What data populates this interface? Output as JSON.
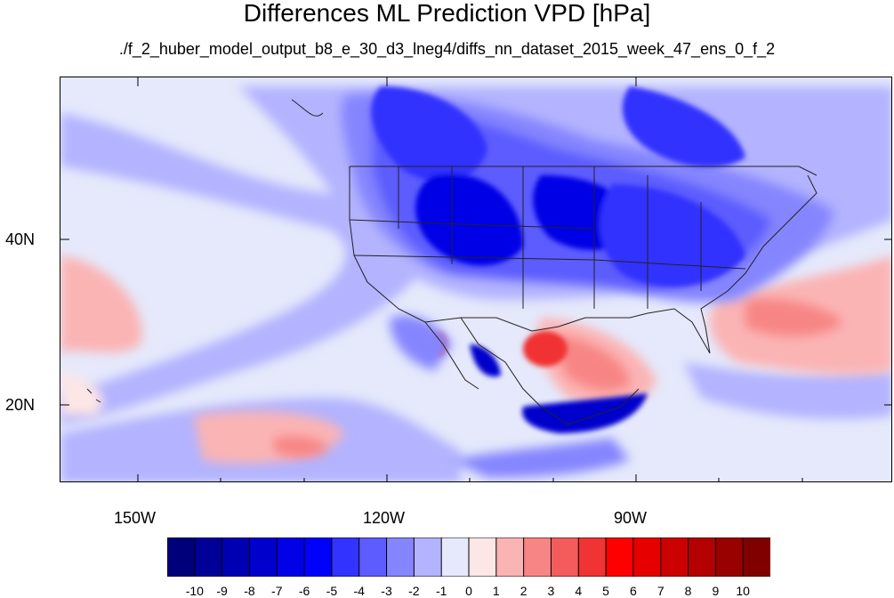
{
  "title": "Differences ML Prediction VPD [hPa]",
  "subtitle": "./f_2_huber_model_output_b8_e_30_d3_lneg4/diffs_nn_dataset_2015_week_47_ens_0_f_2",
  "map": {
    "lat_labels": [
      {
        "label": "40N",
        "value": 40
      },
      {
        "label": "20N",
        "value": 20
      }
    ],
    "lon_labels": [
      {
        "label": "150W",
        "value": -150
      },
      {
        "label": "120W",
        "value": -120
      },
      {
        "label": "90W",
        "value": -90
      }
    ],
    "background_color": "#e5e9fb"
  },
  "colorbar": {
    "labels": [
      "-10",
      "-9",
      "-8",
      "-7",
      "-6",
      "-5",
      "-4",
      "-3",
      "-2",
      "-1",
      "0",
      "1",
      "2",
      "3",
      "4",
      "5",
      "6",
      "7",
      "8",
      "9",
      "10"
    ],
    "colors": [
      "#00007a",
      "#000099",
      "#0000b3",
      "#0000cc",
      "#0000e6",
      "#0000ff",
      "#3333ff",
      "#5c5cff",
      "#8585ff",
      "#b3b3ff",
      "#e5e9fb",
      "#fde6e6",
      "#fbb4b4",
      "#f88585",
      "#f45c5c",
      "#f03333",
      "#ff0000",
      "#e60000",
      "#cc0000",
      "#b30000",
      "#990000",
      "#800000"
    ]
  }
}
